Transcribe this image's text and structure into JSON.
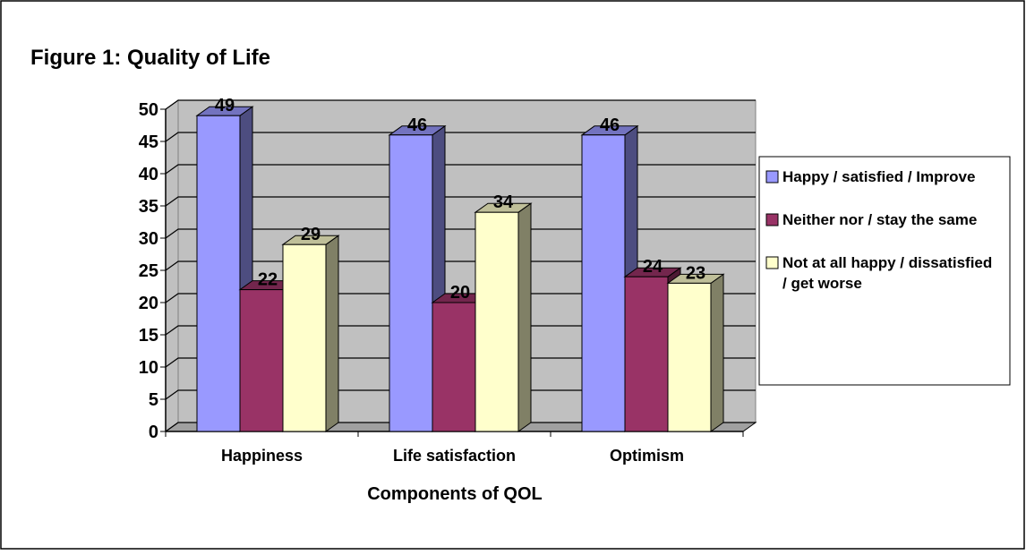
{
  "chart_data": {
    "type": "bar3d",
    "title": "Figure 1: Quality of Life",
    "x_label": "Components of QOL",
    "categories": [
      "Happiness",
      "Life satisfaction",
      "Optimism"
    ],
    "series": [
      {
        "name": "Happy / satisfied / Improve",
        "color": "#9999ff",
        "values": [
          49,
          46,
          46
        ]
      },
      {
        "name": "Neither nor / stay the same",
        "color": "#993366",
        "values": [
          22,
          20,
          24
        ]
      },
      {
        "name": "Not at all happy / dissatisfied / get worse",
        "color": "#ffffcc",
        "values": [
          29,
          34,
          23
        ]
      }
    ],
    "ylim": [
      0,
      50
    ],
    "yticks": [
      0,
      5,
      10,
      15,
      20,
      25,
      30,
      35,
      40,
      45,
      50
    ],
    "grid": true,
    "legend": "right"
  }
}
